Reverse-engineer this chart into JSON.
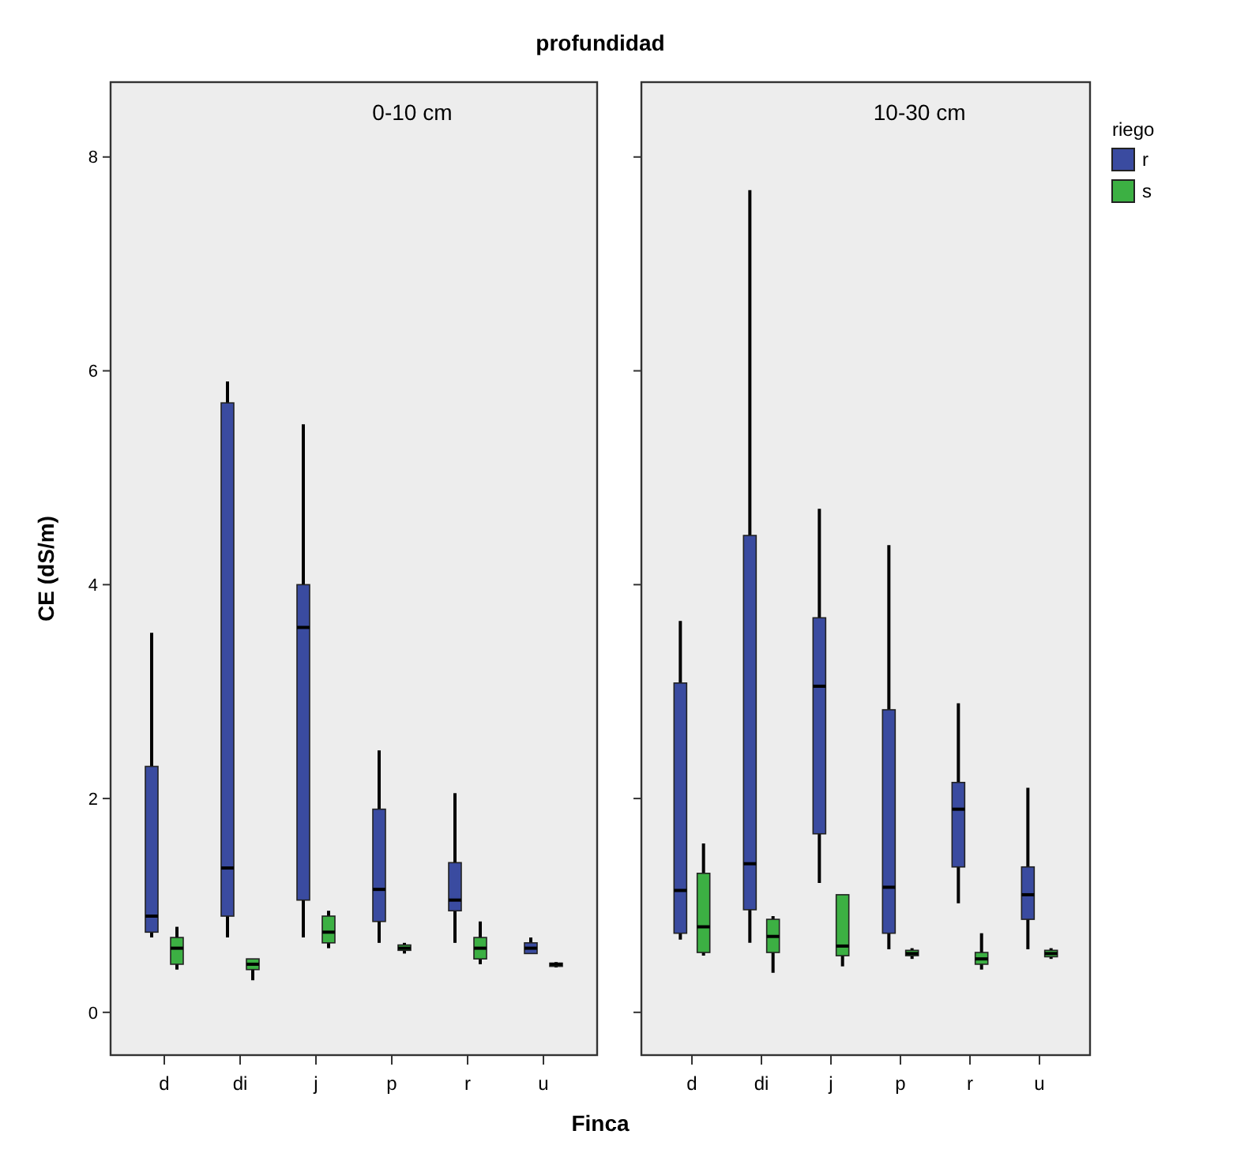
{
  "chart_data": [
    {
      "type": "box",
      "title": "profundidad",
      "xlabel": "Finca",
      "ylabel": "CE (dS/m)",
      "annotations": [
        "0-10 cm"
      ],
      "categories": [
        "d",
        "di",
        "j",
        "p",
        "r",
        "u"
      ],
      "ylim": [
        -0.4,
        8.7
      ],
      "yticks": [
        0,
        2,
        4,
        6,
        8
      ],
      "series": [
        {
          "color": "#3a4ba0",
          "boxes": [
            {
              "low": 0.7,
              "q1": 0.75,
              "median": 0.9,
              "q3": 2.3,
              "high": 3.55
            },
            {
              "low": 0.7,
              "q1": 0.9,
              "median": 1.35,
              "q3": 5.7,
              "high": 5.9
            },
            {
              "low": 0.7,
              "q1": 1.05,
              "median": 3.6,
              "q3": 4.0,
              "high": 5.5
            },
            {
              "low": 0.65,
              "q1": 0.85,
              "median": 1.15,
              "q3": 1.9,
              "high": 2.45
            },
            {
              "low": 0.65,
              "q1": 0.95,
              "median": 1.05,
              "q3": 1.4,
              "high": 2.05
            },
            {
              "low": 0.55,
              "q1": 0.55,
              "median": 0.6,
              "q3": 0.65,
              "high": 0.7
            }
          ]
        },
        {
          "color": "#3cb043",
          "boxes": [
            {
              "low": 0.4,
              "q1": 0.45,
              "median": 0.6,
              "q3": 0.7,
              "high": 0.8
            },
            {
              "low": 0.3,
              "q1": 0.4,
              "median": 0.45,
              "q3": 0.5,
              "high": 0.5
            },
            {
              "low": 0.6,
              "q1": 0.65,
              "median": 0.75,
              "q3": 0.9,
              "high": 0.95
            },
            {
              "low": 0.55,
              "q1": 0.58,
              "median": 0.6,
              "q3": 0.63,
              "high": 0.65
            },
            {
              "low": 0.45,
              "q1": 0.5,
              "median": 0.6,
              "q3": 0.7,
              "high": 0.85
            },
            {
              "low": 0.42,
              "q1": 0.43,
              "median": 0.45,
              "q3": 0.46,
              "high": 0.47
            }
          ]
        }
      ]
    },
    {
      "type": "box",
      "annotations": [
        "10-30 cm"
      ],
      "categories": [
        "d",
        "di",
        "j",
        "p",
        "r",
        "u"
      ],
      "ylim": [
        -0.4,
        8.7
      ],
      "yticks": [
        0,
        2,
        4,
        6,
        8
      ],
      "tick_labels": "x",
      "legend": "right",
      "legend_title": "riego",
      "series": [
        {
          "name": "r",
          "color": "#3a4ba0",
          "boxes": [
            {
              "low": 0.68,
              "q1": 0.74,
              "median": 1.14,
              "q3": 3.08,
              "high": 3.66
            },
            {
              "low": 0.65,
              "q1": 0.96,
              "median": 1.39,
              "q3": 4.46,
              "high": 7.69
            },
            {
              "low": 1.21,
              "q1": 1.67,
              "median": 3.05,
              "q3": 3.69,
              "high": 4.71
            },
            {
              "low": 0.59,
              "q1": 0.74,
              "median": 1.17,
              "q3": 2.83,
              "high": 4.37
            },
            {
              "low": 1.02,
              "q1": 1.36,
              "median": 1.9,
              "q3": 2.15,
              "high": 2.89
            },
            {
              "low": 0.59,
              "q1": 0.87,
              "median": 1.1,
              "q3": 1.36,
              "high": 2.1
            }
          ]
        },
        {
          "name": "s",
          "color": "#3cb043",
          "boxes": [
            {
              "low": 0.53,
              "q1": 0.56,
              "median": 0.8,
              "q3": 1.3,
              "high": 1.58
            },
            {
              "low": 0.37,
              "q1": 0.56,
              "median": 0.71,
              "q3": 0.87,
              "high": 0.9
            },
            {
              "low": 0.43,
              "q1": 0.53,
              "median": 0.62,
              "q3": 1.1,
              "high": 1.1
            },
            {
              "low": 0.5,
              "q1": 0.53,
              "median": 0.55,
              "q3": 0.58,
              "high": 0.6
            },
            {
              "low": 0.4,
              "q1": 0.45,
              "median": 0.5,
              "q3": 0.56,
              "high": 0.74
            },
            {
              "low": 0.5,
              "q1": 0.52,
              "median": 0.55,
              "q3": 0.58,
              "high": 0.6
            }
          ]
        }
      ]
    }
  ]
}
